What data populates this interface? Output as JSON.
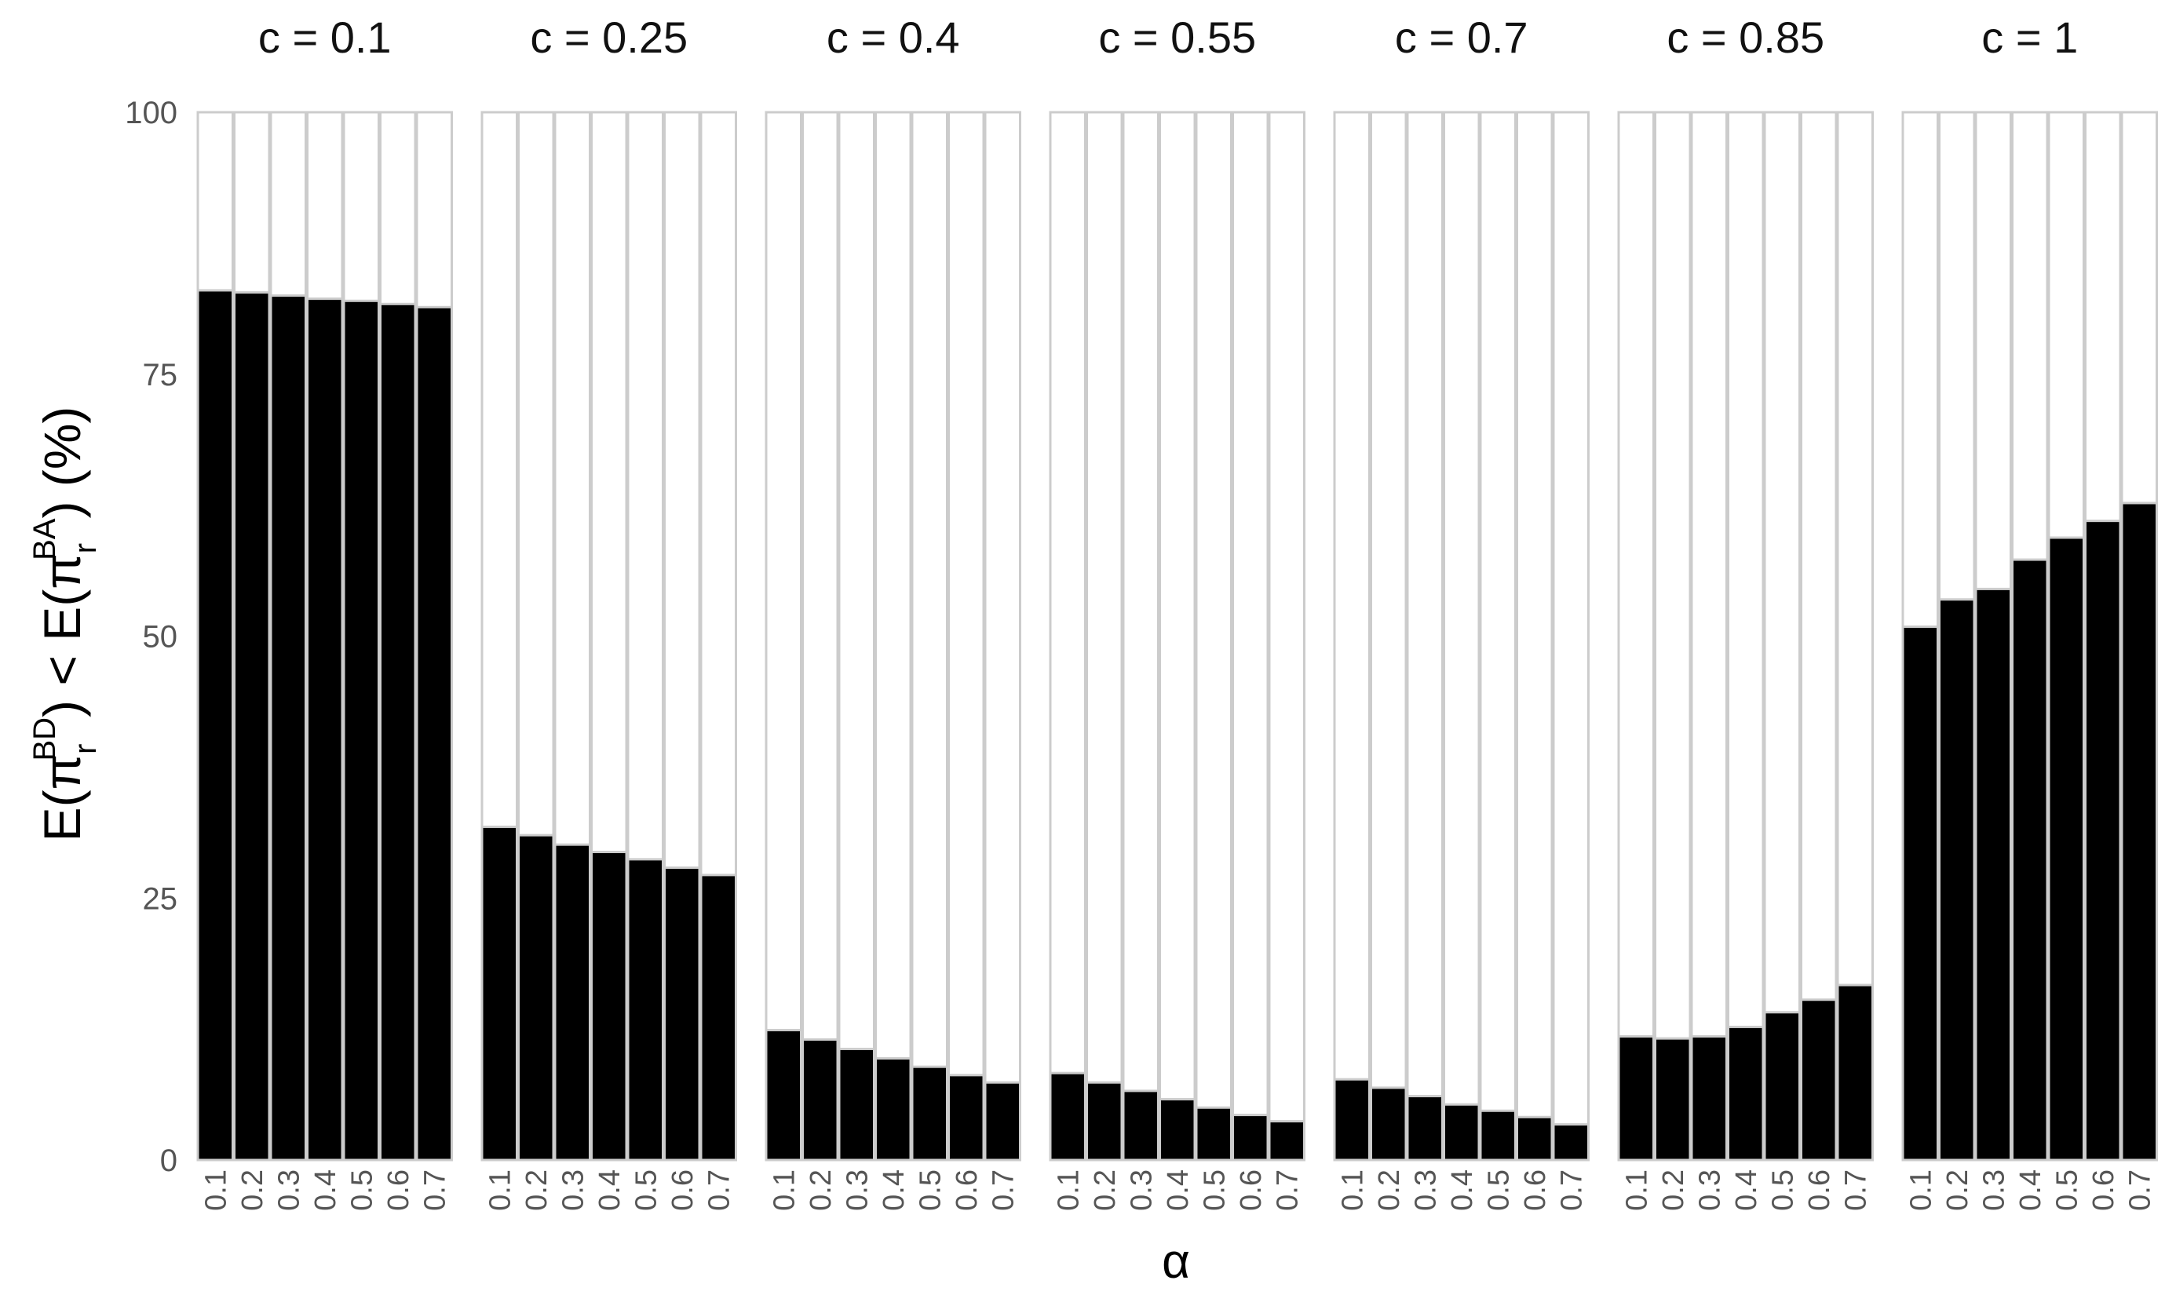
{
  "chart_data": {
    "type": "bar",
    "layout": "faceted",
    "facet_label": "c",
    "facets": [
      "c = 0.1",
      "c = 0.25",
      "c = 0.4",
      "c = 0.55",
      "c = 0.7",
      "c = 0.85",
      "c = 1"
    ],
    "categories": [
      "0.1",
      "0.2",
      "0.3",
      "0.4",
      "0.5",
      "0.6",
      "0.7"
    ],
    "series": [
      {
        "facet": "c = 0.1",
        "values": [
          83.0,
          82.8,
          82.5,
          82.2,
          82.0,
          81.7,
          81.4
        ]
      },
      {
        "facet": "c = 0.25",
        "values": [
          31.8,
          31.0,
          30.1,
          29.4,
          28.7,
          27.9,
          27.2
        ]
      },
      {
        "facet": "c = 0.4",
        "values": [
          12.4,
          11.5,
          10.6,
          9.7,
          8.9,
          8.1,
          7.4
        ]
      },
      {
        "facet": "c = 0.55",
        "values": [
          8.3,
          7.4,
          6.6,
          5.8,
          5.0,
          4.3,
          3.7
        ]
      },
      {
        "facet": "c = 0.7",
        "values": [
          7.7,
          6.9,
          6.1,
          5.3,
          4.7,
          4.1,
          3.4
        ]
      },
      {
        "facet": "c = 0.85",
        "values": [
          11.8,
          11.6,
          11.8,
          12.7,
          14.1,
          15.3,
          16.7
        ]
      },
      {
        "facet": "c = 1",
        "values": [
          50.9,
          53.5,
          54.5,
          57.3,
          59.4,
          61.0,
          62.7
        ]
      }
    ],
    "xlabel": "α",
    "ylabel": {
      "base": "E(π",
      "sub": "r",
      "sup_bd": "BD",
      "lt": ") < E(π",
      "sup_ba": "BA",
      "end": ") (%)"
    },
    "ylim": [
      0,
      100
    ],
    "yticks": [
      0,
      25,
      50,
      75,
      100
    ],
    "bar_color": "#000000",
    "background_bar_color": "#ffffff",
    "bar_outline_color": "#cccccc",
    "grid": false,
    "legend": "none"
  }
}
